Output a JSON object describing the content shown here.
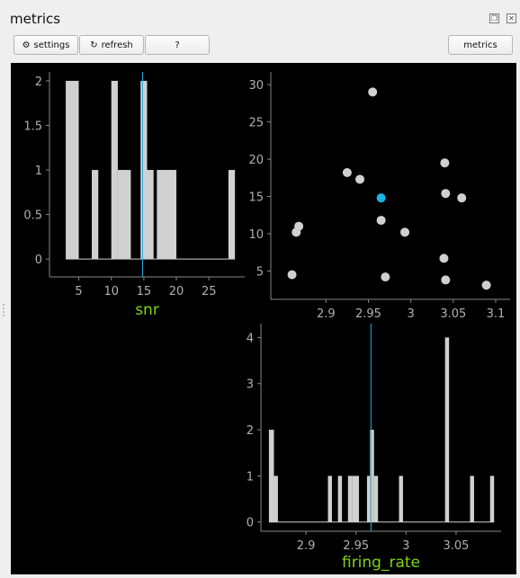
{
  "window": {
    "title": "metrics"
  },
  "toolbar": {
    "settings_label": "settings",
    "refresh_label": "refresh",
    "help_label": "?",
    "metrics_label": "metrics"
  },
  "chart_data": [
    {
      "type": "bar",
      "subtype": "histogram",
      "xlabel": "snr",
      "bins": [
        {
          "start": 3,
          "end": 5,
          "count": 2
        },
        {
          "start": 7,
          "end": 8,
          "count": 1
        },
        {
          "start": 10,
          "end": 11,
          "count": 2
        },
        {
          "start": 11,
          "end": 13,
          "count": 1
        },
        {
          "start": 14.5,
          "end": 15.5,
          "count": 2
        },
        {
          "start": 15.5,
          "end": 16.5,
          "count": 1
        },
        {
          "start": 17,
          "end": 20,
          "count": 1
        },
        {
          "start": 28,
          "end": 29,
          "count": 1
        }
      ],
      "xlim": [
        0.5,
        30.5
      ],
      "ylim": [
        -0.2,
        2.1
      ],
      "xticks": [
        5,
        10,
        15,
        20,
        25
      ],
      "yticks": [
        0,
        0.5,
        1,
        1.5,
        2
      ],
      "marker_x": 14.8
    },
    {
      "type": "scatter",
      "points": [
        {
          "x": 2.86,
          "y": 4.5
        },
        {
          "x": 2.865,
          "y": 10.2
        },
        {
          "x": 2.868,
          "y": 11
        },
        {
          "x": 2.925,
          "y": 18.2
        },
        {
          "x": 2.94,
          "y": 17.3
        },
        {
          "x": 2.955,
          "y": 29
        },
        {
          "x": 2.965,
          "y": 11.8
        },
        {
          "x": 2.97,
          "y": 4.2
        },
        {
          "x": 2.993,
          "y": 10.2
        },
        {
          "x": 3.039,
          "y": 6.7
        },
        {
          "x": 3.04,
          "y": 19.5
        },
        {
          "x": 3.041,
          "y": 15.4
        },
        {
          "x": 3.041,
          "y": 3.8
        },
        {
          "x": 3.06,
          "y": 14.8
        },
        {
          "x": 3.089,
          "y": 3.1
        }
      ],
      "highlight": {
        "x": 2.965,
        "y": 14.8,
        "color": "#1ab3e6"
      },
      "xlim": [
        2.835,
        3.117
      ],
      "ylim": [
        1.2,
        31.7
      ],
      "xticks": [
        2.9,
        2.95,
        3.0,
        3.05,
        3.1
      ],
      "yticks": [
        5,
        10,
        15,
        20,
        25,
        30
      ]
    },
    {
      "type": "bar",
      "subtype": "histogram",
      "xlabel": "firing_rate",
      "bins": [
        {
          "start": 2.863,
          "end": 2.868,
          "count": 2
        },
        {
          "start": 2.868,
          "end": 2.872,
          "count": 1
        },
        {
          "start": 2.922,
          "end": 2.926,
          "count": 1
        },
        {
          "start": 2.932,
          "end": 2.936,
          "count": 1
        },
        {
          "start": 2.942,
          "end": 2.946,
          "count": 1
        },
        {
          "start": 2.946,
          "end": 2.953,
          "count": 1
        },
        {
          "start": 2.961,
          "end": 2.964,
          "count": 1
        },
        {
          "start": 2.964,
          "end": 2.968,
          "count": 2
        },
        {
          "start": 2.968,
          "end": 2.972,
          "count": 1
        },
        {
          "start": 2.993,
          "end": 2.997,
          "count": 1
        },
        {
          "start": 3.039,
          "end": 3.043,
          "count": 4
        },
        {
          "start": 3.064,
          "end": 3.068,
          "count": 1
        },
        {
          "start": 3.084,
          "end": 3.088,
          "count": 1
        }
      ],
      "xlim": [
        2.855,
        3.095
      ],
      "ylim": [
        -0.2,
        4.3
      ],
      "xticks": [
        2.9,
        2.95,
        3.0,
        3.05
      ],
      "yticks": [
        0,
        1,
        2,
        3,
        4
      ],
      "marker_x": 2.965
    }
  ],
  "colors": {
    "bar_fill": "#d0d0d0",
    "marker": "#1ab3e6",
    "label": "#7dd314",
    "axis": "#888888"
  }
}
